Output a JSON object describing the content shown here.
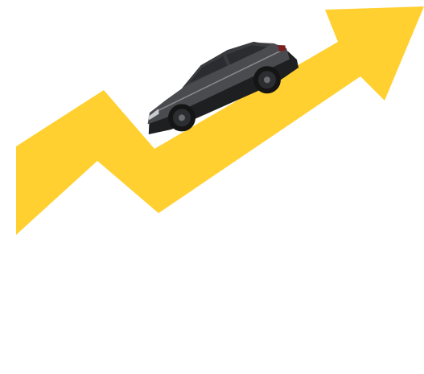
{
  "colors": {
    "background": "#ffffff",
    "arrow": "#ffd030",
    "car_body": "#4a4b4e",
    "car_dark": "#1e1f21",
    "glass": "#2a2c30",
    "tire": "#151515",
    "rim": "#2c2d30",
    "highlight": "#8a8c90"
  },
  "illustration": {
    "subject": "growth-arrow-with-suv",
    "icons": [
      "upward-zigzag-arrow-icon",
      "suv-car-icon"
    ]
  }
}
